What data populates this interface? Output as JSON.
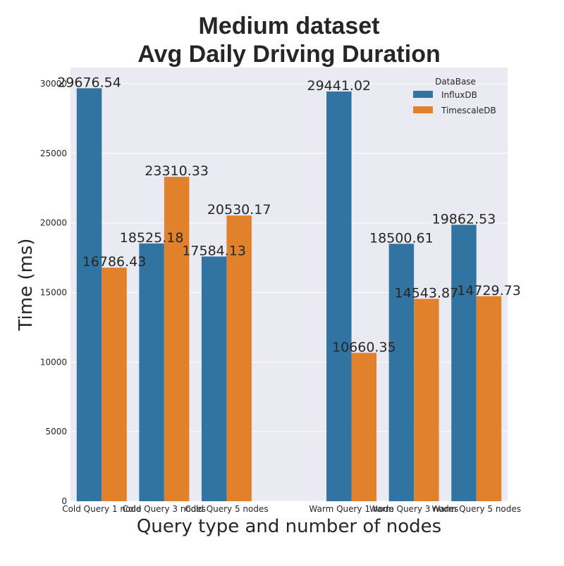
{
  "chart_data": {
    "type": "bar",
    "title_lines": [
      "Medium dataset",
      "Avg Daily Driving Duration"
    ],
    "xlabel": "Query type and number of nodes",
    "ylabel": "Time (ms)",
    "categories": [
      "Cold Query 1 node",
      "Cold Query 3 nodes",
      "Cold Query 5 nodes",
      "",
      "Warm Query 1 node",
      "Warm Query 3 nodes",
      "Warm Query 5 nodes"
    ],
    "series": [
      {
        "name": "InfluxDB",
        "color": "#3274a1",
        "values": [
          29676.54,
          18525.18,
          17584.13,
          null,
          29441.02,
          18500.61,
          19862.53
        ]
      },
      {
        "name": "TimescaleDB",
        "color": "#e1812c",
        "values": [
          16786.43,
          23310.33,
          20530.17,
          null,
          10660.35,
          14543.87,
          14729.73
        ]
      }
    ],
    "data_labels": [
      [
        "29676.54",
        "18525.18",
        "17584.13",
        "",
        "29441.02",
        "18500.61",
        "19862.53"
      ],
      [
        "16786.43",
        "23310.33",
        "20530.17",
        "",
        "10660.35",
        "14543.87",
        "14729.73"
      ]
    ],
    "yticks": [
      0,
      5000,
      10000,
      15000,
      20000,
      25000,
      30000
    ],
    "ylim": [
      0,
      31161
    ],
    "grid": "horizontal",
    "legend": {
      "title": "DataBase",
      "placement": "top-right"
    },
    "colors": {
      "background": "#eaeaf2",
      "grid": "#ffffff",
      "text": "#262626"
    }
  }
}
